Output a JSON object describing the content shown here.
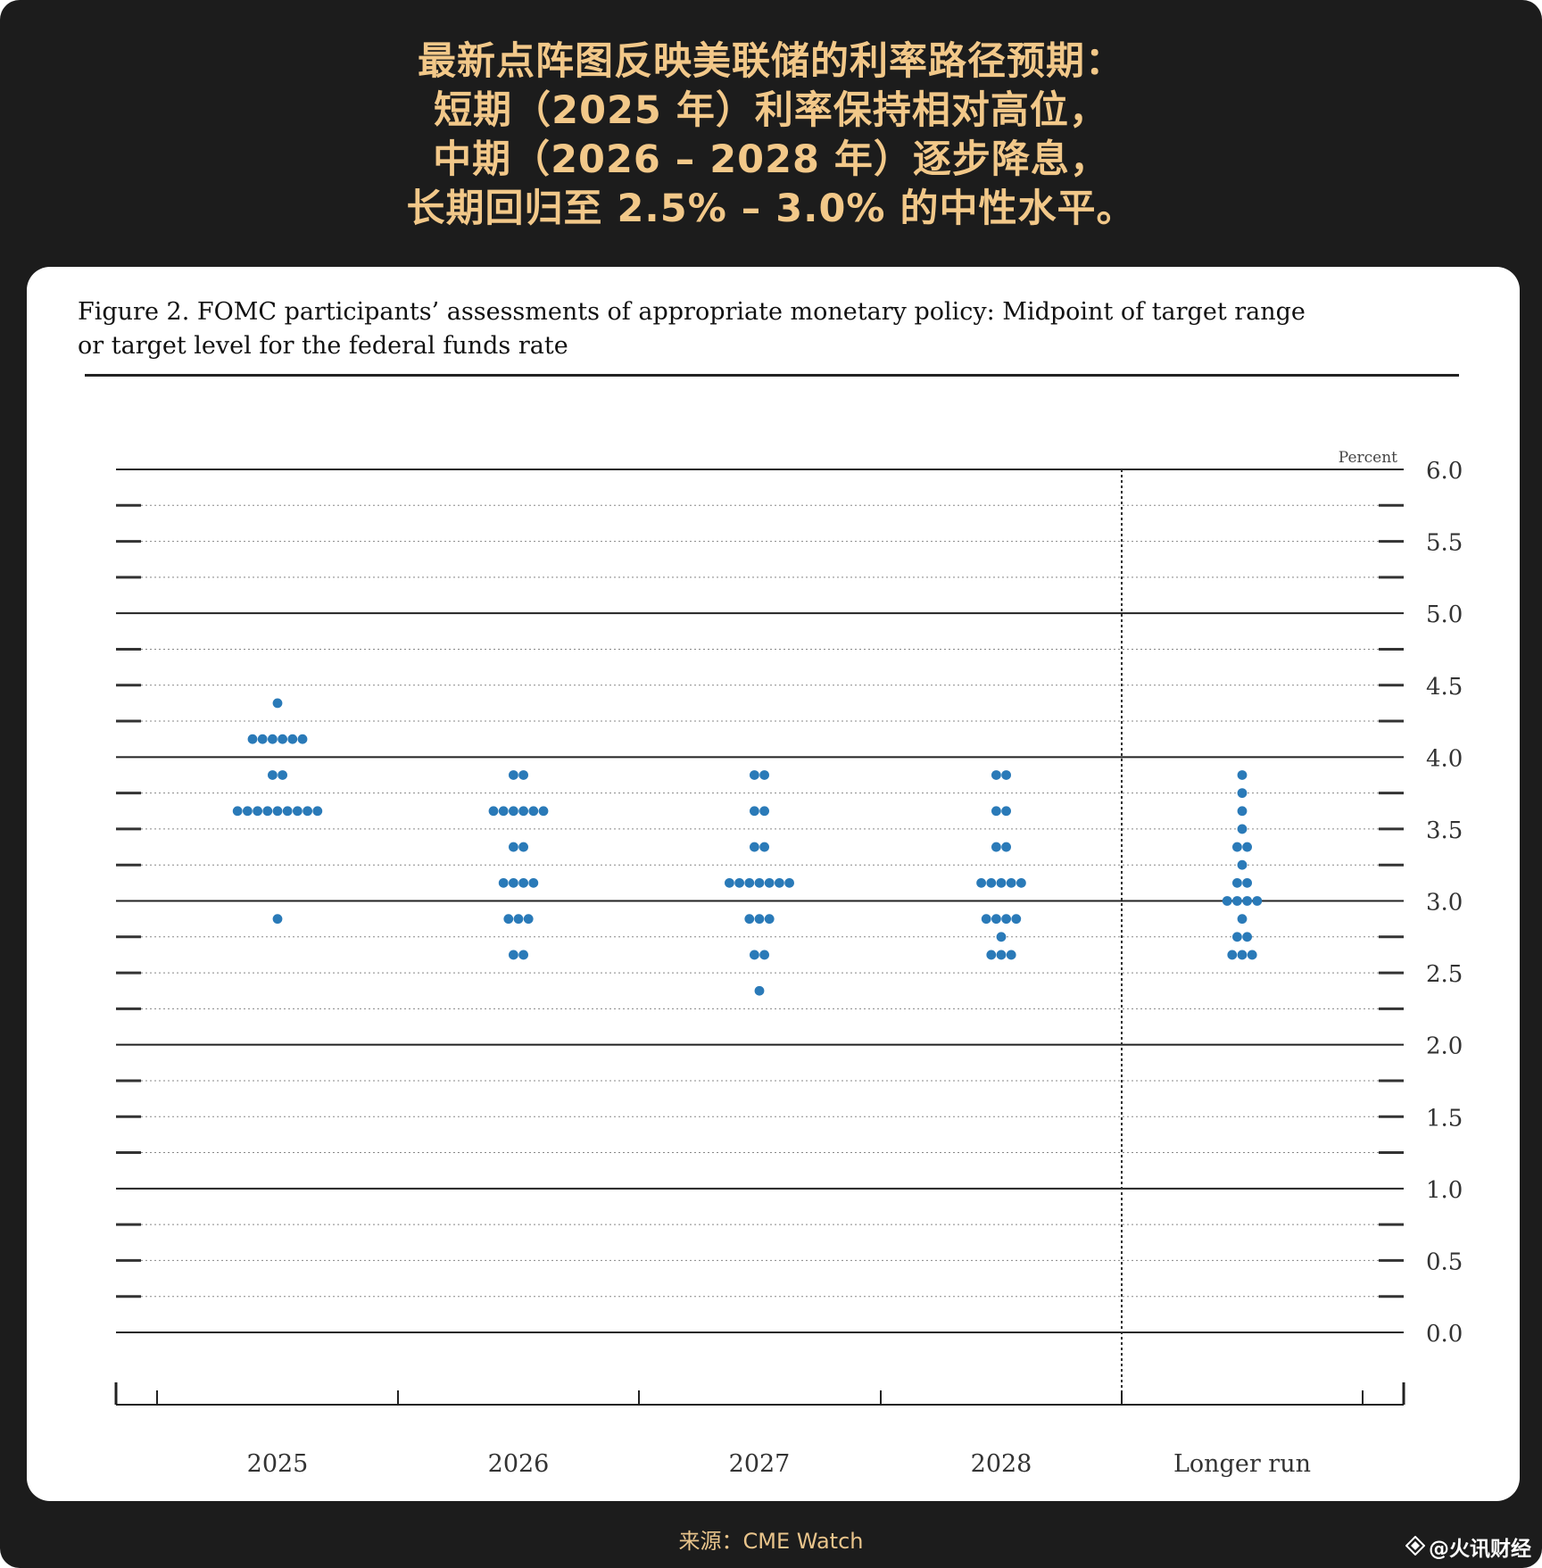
{
  "headline": [
    "最新点阵图反映美联储的利率路径预期：",
    "短期（2025 年）利率保持相对高位，",
    "中期（2026 – 2028 年）逐步降息，",
    "长期回归至 2.5% – 3.0% 的中性水平。"
  ],
  "figure": {
    "title_line1": "Figure 2. FOMC participants’ assessments of appropriate monetary policy: Midpoint of target range",
    "title_line2": "or target level for the federal funds rate"
  },
  "source": "来源：CME Watch",
  "watermark": "@火讯财经",
  "colors": {
    "dot": "#2a7ab8",
    "headline": "#f2c889",
    "frame": "#1c1c1c"
  },
  "chart_data": {
    "type": "scatter",
    "unit_label": "Percent",
    "categories": [
      "2025",
      "2026",
      "2027",
      "2028",
      "Longer run"
    ],
    "y_ticks": [
      "6.0",
      "5.5",
      "5.0",
      "4.5",
      "4.0",
      "3.5",
      "3.0",
      "2.5",
      "2.0",
      "1.5",
      "1.0",
      "0.5",
      "0.0"
    ],
    "ylim": [
      0,
      6
    ],
    "grid_step": 0.25,
    "dots": [
      {
        "category": "2025",
        "counts": [
          {
            "y": 4.375,
            "n": 1
          },
          {
            "y": 4.125,
            "n": 6
          },
          {
            "y": 3.875,
            "n": 2
          },
          {
            "y": 3.625,
            "n": 9
          },
          {
            "y": 2.875,
            "n": 1
          }
        ]
      },
      {
        "category": "2026",
        "counts": [
          {
            "y": 3.875,
            "n": 2
          },
          {
            "y": 3.625,
            "n": 6
          },
          {
            "y": 3.375,
            "n": 2
          },
          {
            "y": 3.125,
            "n": 4
          },
          {
            "y": 2.875,
            "n": 3
          },
          {
            "y": 2.625,
            "n": 2
          }
        ]
      },
      {
        "category": "2027",
        "counts": [
          {
            "y": 3.875,
            "n": 2
          },
          {
            "y": 3.625,
            "n": 2
          },
          {
            "y": 3.375,
            "n": 2
          },
          {
            "y": 3.125,
            "n": 7
          },
          {
            "y": 2.875,
            "n": 3
          },
          {
            "y": 2.625,
            "n": 2
          },
          {
            "y": 2.375,
            "n": 1
          }
        ]
      },
      {
        "category": "2028",
        "counts": [
          {
            "y": 3.875,
            "n": 2
          },
          {
            "y": 3.625,
            "n": 2
          },
          {
            "y": 3.375,
            "n": 2
          },
          {
            "y": 3.125,
            "n": 5
          },
          {
            "y": 2.875,
            "n": 4
          },
          {
            "y": 2.75,
            "n": 1
          },
          {
            "y": 2.625,
            "n": 3
          }
        ]
      },
      {
        "category": "Longer run",
        "counts": [
          {
            "y": 3.875,
            "n": 1
          },
          {
            "y": 3.75,
            "n": 1
          },
          {
            "y": 3.625,
            "n": 1
          },
          {
            "y": 3.5,
            "n": 1
          },
          {
            "y": 3.375,
            "n": 2
          },
          {
            "y": 3.25,
            "n": 1
          },
          {
            "y": 3.125,
            "n": 2
          },
          {
            "y": 3.0,
            "n": 4
          },
          {
            "y": 2.875,
            "n": 1
          },
          {
            "y": 2.75,
            "n": 2
          },
          {
            "y": 2.625,
            "n": 3
          }
        ]
      }
    ]
  }
}
